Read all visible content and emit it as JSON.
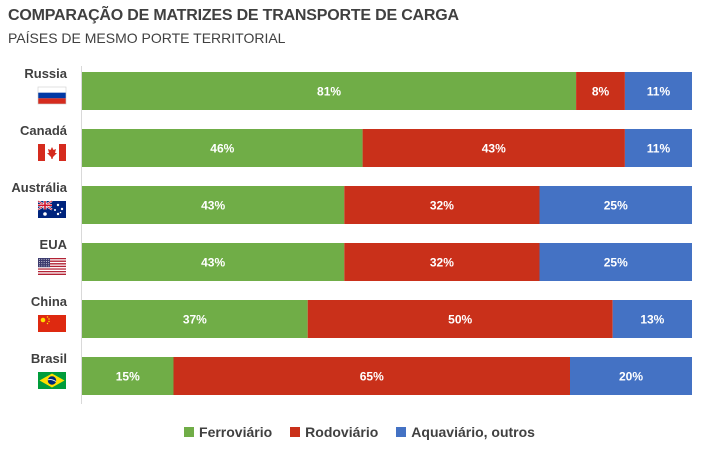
{
  "chart_data": {
    "type": "bar",
    "orientation": "horizontal",
    "stacked": true,
    "title": "COMPARAÇÃO DE MATRIZES DE TRANSPORTE DE CARGA",
    "subtitle": "PAÍSES DE MESMO PORTE TERRITORIAL",
    "categories": [
      "Russia",
      "Canadá",
      "Austrália",
      "EUA",
      "China",
      "Brasil"
    ],
    "series": [
      {
        "name": "Ferroviário",
        "color": "#70ad47",
        "values": [
          81,
          46,
          43,
          43,
          37,
          15
        ]
      },
      {
        "name": "Rodoviário",
        "color": "#c9301a",
        "values": [
          8,
          43,
          32,
          32,
          50,
          65
        ]
      },
      {
        "name": "Aquaviário, outros",
        "color": "#4472c4",
        "values": [
          11,
          11,
          25,
          25,
          13,
          20
        ]
      }
    ],
    "flags": [
      "russia-flag-icon",
      "canada-flag-icon",
      "australia-flag-icon",
      "usa-flag-icon",
      "china-flag-icon",
      "brazil-flag-icon"
    ],
    "value_suffix": "%",
    "xlim": [
      0,
      100
    ],
    "legend_position": "bottom",
    "grid": false
  }
}
